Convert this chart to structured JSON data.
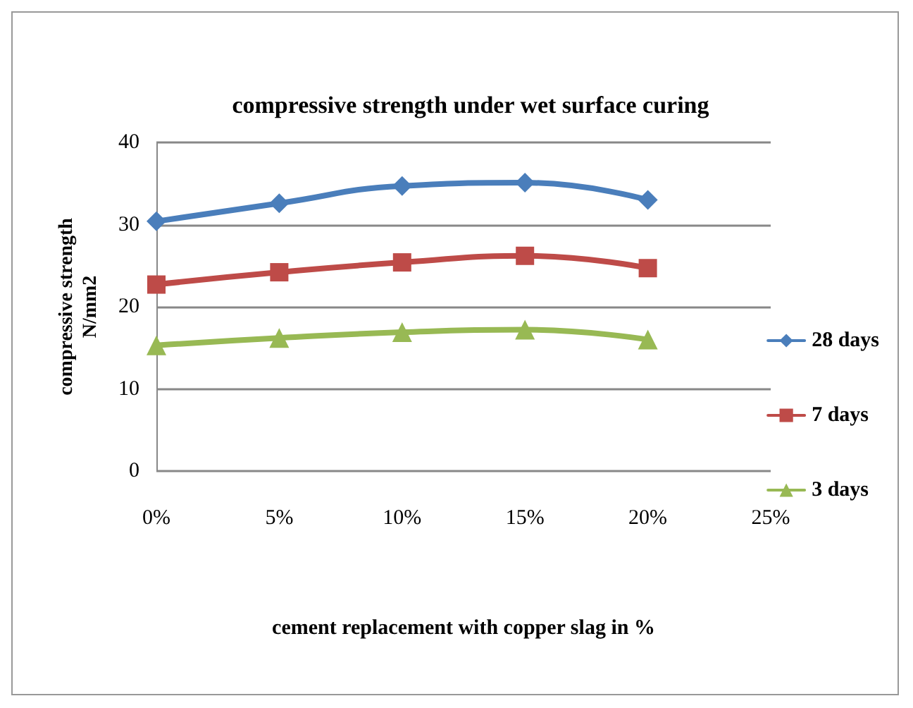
{
  "chart_data": {
    "type": "line",
    "title": "compressive strength under wet surface curing",
    "xlabel": "cement replacement with copper slag in %",
    "ylabel": "compressive strength\nN/mm2",
    "x": [
      0,
      5,
      10,
      15,
      20
    ],
    "series": [
      {
        "name": "28 days",
        "color": "#4a7ebb",
        "marker": "diamond",
        "values": [
          30.4,
          32.6,
          34.7,
          35.1,
          33.0
        ]
      },
      {
        "name": "7 days",
        "color": "#be4b48",
        "marker": "square",
        "values": [
          22.7,
          24.2,
          25.4,
          26.2,
          24.7
        ]
      },
      {
        "name": "3 days",
        "color": "#98b954",
        "marker": "triangle",
        "values": [
          15.3,
          16.2,
          16.9,
          17.2,
          16.0
        ]
      }
    ],
    "xlim": [
      0,
      25
    ],
    "xticks": [
      {
        "value": 0,
        "label": "0%"
      },
      {
        "value": 5,
        "label": "5%"
      },
      {
        "value": 10,
        "label": "10%"
      },
      {
        "value": 15,
        "label": "15%"
      },
      {
        "value": 20,
        "label": "20%"
      },
      {
        "value": 25,
        "label": "25%"
      }
    ],
    "ylim": [
      0,
      40
    ],
    "yticks": [
      0,
      10,
      20,
      30,
      40
    ],
    "grid": "y",
    "legend": "right"
  }
}
